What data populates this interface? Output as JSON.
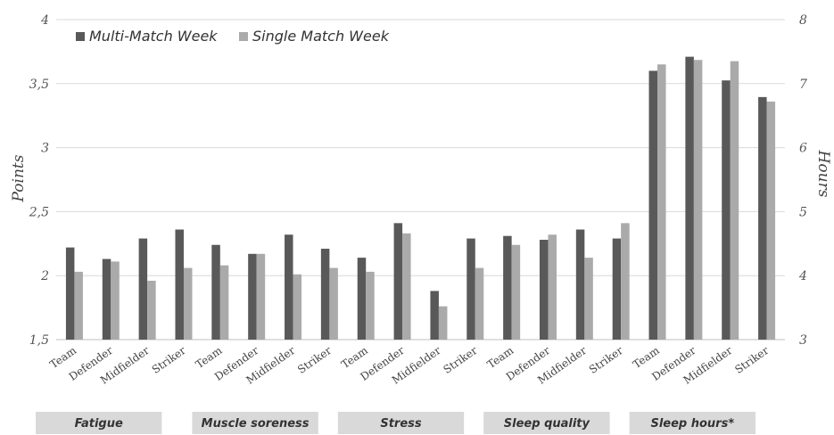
{
  "chart_data": {
    "type": "bar",
    "title": "",
    "ylabel": "Points",
    "ylabel_right": "Hours",
    "ylim": [
      1.5,
      4
    ],
    "y_ticks": [
      "1,5",
      "2",
      "2,5",
      "3",
      "3,5",
      "4"
    ],
    "ylim_right": [
      3,
      8
    ],
    "y_ticks_right": [
      "3",
      "4",
      "5",
      "6",
      "7",
      "8"
    ],
    "grid": true,
    "legend_position": "top-left",
    "colors": {
      "multi": "#595959",
      "single": "#aaaaaa",
      "grid": "#d9d9d9",
      "group_box": "#d9d9d9"
    },
    "series": [
      {
        "name": "Multi-Match Week"
      },
      {
        "name": "Single Match Week"
      }
    ],
    "groups": [
      {
        "label": "Fatigue",
        "axis": "left",
        "categories": [
          "Team",
          "Defender",
          "Midfielder",
          "Striker"
        ],
        "multi": [
          2.22,
          2.13,
          2.29,
          2.36
        ],
        "single": [
          2.03,
          2.11,
          1.96,
          2.06
        ]
      },
      {
        "label": "Muscle soreness",
        "axis": "left",
        "categories": [
          "Team",
          "Defender",
          "Midfielder",
          "Striker"
        ],
        "multi": [
          2.24,
          2.17,
          2.32,
          2.21
        ],
        "single": [
          2.08,
          2.17,
          2.01,
          2.06
        ]
      },
      {
        "label": "Stress",
        "axis": "left",
        "categories": [
          "Team",
          "Defender",
          "Midfielder",
          "Striker"
        ],
        "multi": [
          2.14,
          2.41,
          1.88,
          2.29
        ],
        "single": [
          2.03,
          2.33,
          1.76,
          2.06
        ]
      },
      {
        "label": "Sleep quality",
        "axis": "left",
        "categories": [
          "Team",
          "Defender",
          "Midfielder",
          "Striker"
        ],
        "multi": [
          2.31,
          2.28,
          2.36,
          2.29
        ],
        "single": [
          2.24,
          2.32,
          2.14,
          2.41
        ]
      },
      {
        "label": "Sleep hours*",
        "axis": "right",
        "categories": [
          "Team",
          "Defender",
          "Midfielder",
          "Striker"
        ],
        "multi": [
          7.2,
          7.42,
          7.05,
          6.79
        ],
        "single": [
          7.3,
          7.37,
          7.35,
          6.72
        ]
      }
    ]
  }
}
